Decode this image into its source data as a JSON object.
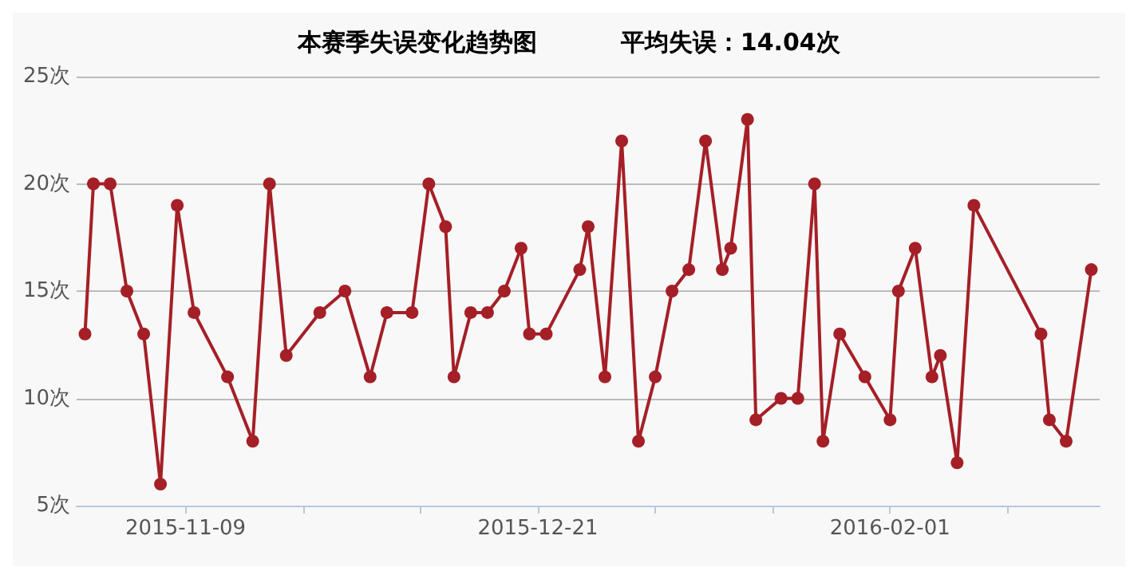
{
  "chart_data": {
    "type": "line",
    "title": "本赛季失误变化趋势图          平均失误：14.04次",
    "x": [
      "2015-10-28",
      "2015-10-29",
      "2015-10-31",
      "2015-11-02",
      "2015-11-04",
      "2015-11-06",
      "2015-11-08",
      "2015-11-10",
      "2015-11-14",
      "2015-11-17",
      "2015-11-19",
      "2015-11-21",
      "2015-11-25",
      "2015-11-28",
      "2015-12-01",
      "2015-12-03",
      "2015-12-06",
      "2015-12-08",
      "2015-12-10",
      "2015-12-11",
      "2015-12-13",
      "2015-12-15",
      "2015-12-17",
      "2015-12-19",
      "2015-12-20",
      "2015-12-22",
      "2015-12-26",
      "2015-12-27",
      "2015-12-29",
      "2015-12-31",
      "2016-01-02",
      "2016-01-04",
      "2016-01-06",
      "2016-01-08",
      "2016-01-10",
      "2016-01-12",
      "2016-01-13",
      "2016-01-15",
      "2016-01-16",
      "2016-01-19",
      "2016-01-21",
      "2016-01-23",
      "2016-01-24",
      "2016-01-26",
      "2016-01-29",
      "2016-02-01",
      "2016-02-02",
      "2016-02-04",
      "2016-02-06",
      "2016-02-07",
      "2016-02-09",
      "2016-02-11",
      "2016-02-19",
      "2016-02-20",
      "2016-02-22",
      "2016-02-25"
    ],
    "series": [
      {
        "color": "#a51f27",
        "values": [
          13,
          20,
          20,
          15,
          13,
          6,
          19,
          14,
          11,
          8,
          20,
          12,
          14,
          15,
          11,
          14,
          14,
          20,
          18,
          11,
          14,
          14,
          15,
          17,
          13,
          13,
          16,
          18,
          11,
          22,
          8,
          11,
          15,
          16,
          22,
          16,
          17,
          23,
          9,
          10,
          10,
          20,
          8,
          13,
          11,
          9,
          15,
          17,
          11,
          12,
          7,
          19,
          13,
          9,
          8,
          16
        ]
      }
    ],
    "xlim": [
      "2015-10-27",
      "2016-02-26"
    ],
    "xticks": [
      {
        "value": "2015-11-09",
        "label": "2015-11-09"
      },
      {
        "value": "2015-11-23",
        "label": null
      },
      {
        "value": "2015-12-07",
        "label": null
      },
      {
        "value": "2015-12-21",
        "label": "2015-12-21"
      },
      {
        "value": "2016-01-04",
        "label": null
      },
      {
        "value": "2016-01-18",
        "label": null
      },
      {
        "value": "2016-02-01",
        "label": "2016-02-01"
      },
      {
        "value": "2016-02-15",
        "label": null
      }
    ],
    "ylim": [
      5,
      25
    ],
    "yticks": [
      {
        "value": 5,
        "label": "5次"
      },
      {
        "value": 10,
        "label": "10次"
      },
      {
        "value": 15,
        "label": "15次"
      },
      {
        "value": 20,
        "label": "20次"
      },
      {
        "value": 25,
        "label": "25次"
      }
    ],
    "grid": "y",
    "marker": "circle",
    "line_style": "solid"
  }
}
